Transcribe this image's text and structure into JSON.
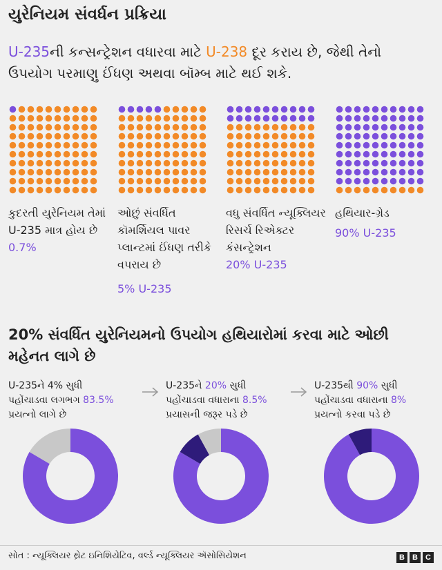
{
  "header": {
    "title": "યુરેનિયમ સંવર્ધન પ્રક્રિયા"
  },
  "intro": {
    "u235": "U-235",
    "part1": "ની કન્સન્ટ્રેશન વધારવા માટે ",
    "u238": "U-238",
    "part2": " દૂર કરાય છે, જેથી તેનો ઉપયોગ પરમાણુ ઈંધણ અથવા બૉમ્બ માટે થઈ શકે."
  },
  "colors": {
    "u235": "#7b4fdc",
    "u238": "#f28a27",
    "step_effort": "#c8c8c8",
    "cumulative_effort": "#2e1b7a"
  },
  "chart_data": [
    {
      "type": "waffle",
      "grid": [
        10,
        10
      ],
      "panels": [
        {
          "label": "કુદરતી યુરેનિયમ તેમાં U-235 માત્ર હોય છે",
          "value_label": "0.7%",
          "purple_dots": 1
        },
        {
          "label": "ઓછું સંવર્ધિત કૉમર્શિયલ પાવર પ્લાન્ટમાં ઈંધણ તરીકે વપરાય છે",
          "value_label": "5% U-235",
          "purple_dots": 5
        },
        {
          "label": "વધુ સંવર્ધિત ન્યૂક્લિયર રિસર્ચ રિએક્ટર કંસન્ટ્રેશન",
          "value_label": "20% U-235",
          "purple_dots": 20
        },
        {
          "label": "હથિયાર-ગ્રેડ",
          "value_label": "90% U-235",
          "purple_dots": 90
        }
      ]
    },
    {
      "type": "pie",
      "title": "20% સંવર્ધિત યુરેનિયમનો ઉપયોગ હથિયારોમાં કરવા માટે ઓછી મહેનત લાગે છે",
      "steps": [
        {
          "text_a": "U-235ને  4%  સુધી",
          "text_b": "પહોંચાડવા લગભગ ",
          "value_label": "83.5%",
          "text_c": "પ્રયત્નો લાગે છે",
          "slices": [
            {
              "name": "remaining",
              "value": 83.5
            },
            {
              "name": "step",
              "value": 16.5
            }
          ]
        },
        {
          "text_a": "U-235ને ",
          "text_a_pct": "20%",
          "text_a2": " સુધી",
          "text_b": "પહોંચાડવા વધારાના ",
          "value_label": "8.5%",
          "text_c": "પ્રયાસની જરૂર પડે છે",
          "slices": [
            {
              "name": "remaining",
              "value": 83.5
            },
            {
              "name": "cumulative",
              "value": 8.5
            },
            {
              "name": "step",
              "value": 8
            }
          ]
        },
        {
          "text_a": "U-235થી ",
          "text_a_pct": "90%",
          "text_a2": " સુધી",
          "text_b": "પહોંચાડવા વધારાના  ",
          "value_label": "8%",
          "text_c": "પ્રયત્નો કરવા પડે છે",
          "slices": [
            {
              "name": "remaining",
              "value": 92
            },
            {
              "name": "cumulative",
              "value": 8
            }
          ]
        }
      ]
    }
  ],
  "footer": {
    "source": "સોત : ન્યૂક્લિયર થ્રેટ ઇનિશિયેટિવ, વર્લ્ડ ન્યૂક્લિયર ઍસોસિયેશન",
    "logo": [
      "B",
      "B",
      "C"
    ]
  }
}
